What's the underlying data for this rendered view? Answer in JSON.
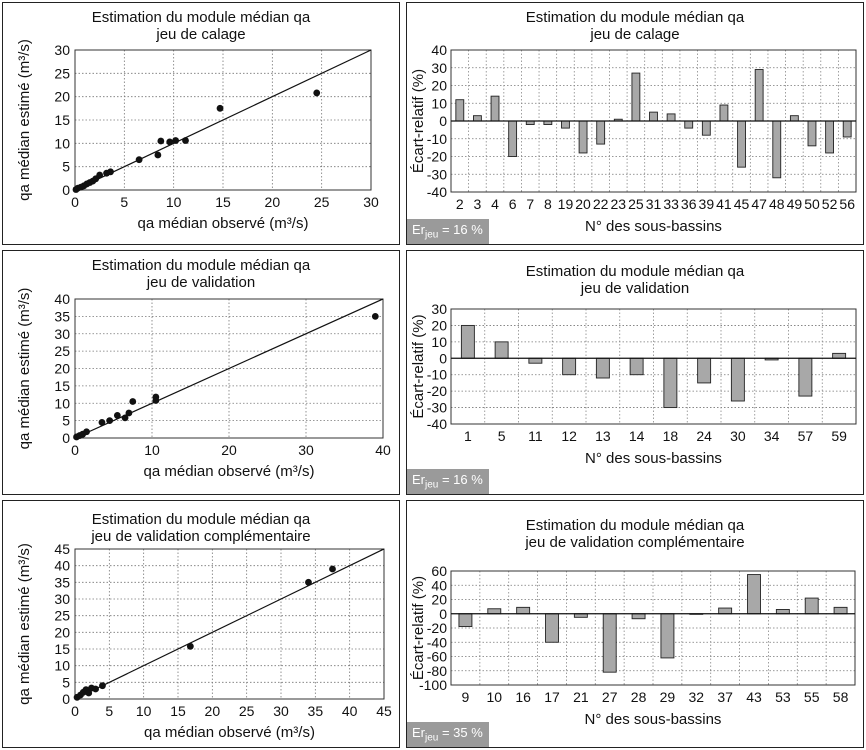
{
  "chart_data": [
    {
      "type": "scatter",
      "title": "Estimation du module médian qa",
      "subtitle": "jeu de calage",
      "xlabel": "qa médian observé (m³/s)",
      "ylabel": "qa médian estimé (m³/s)",
      "xlim": [
        0,
        30
      ],
      "ylim": [
        0,
        30
      ],
      "xticks": [
        0,
        5,
        10,
        15,
        20,
        25,
        30
      ],
      "yticks": [
        0,
        5,
        10,
        15,
        20,
        25,
        30
      ],
      "reference_line": "1:1",
      "grid": true,
      "points": [
        [
          0.1,
          0.1
        ],
        [
          0.3,
          0.4
        ],
        [
          0.6,
          0.6
        ],
        [
          0.9,
          0.9
        ],
        [
          1.2,
          1.3
        ],
        [
          1.5,
          1.6
        ],
        [
          1.8,
          1.9
        ],
        [
          2.1,
          2.4
        ],
        [
          2.5,
          3.2
        ],
        [
          3.2,
          3.6
        ],
        [
          3.6,
          3.9
        ],
        [
          6.5,
          6.5
        ],
        [
          8.4,
          7.5
        ],
        [
          8.7,
          10.5
        ],
        [
          9.6,
          10.3
        ],
        [
          10.2,
          10.6
        ],
        [
          11.2,
          10.6
        ],
        [
          14.7,
          17.5
        ],
        [
          24.5,
          20.8
        ]
      ]
    },
    {
      "type": "bar",
      "title": "Estimation du module médian qa",
      "subtitle": "jeu de calage",
      "xlabel": "N° des sous-bassins",
      "ylabel": "Écart-relatif (%)",
      "ylim": [
        -40,
        40
      ],
      "yticks": [
        -40,
        -30,
        -20,
        -10,
        0,
        10,
        20,
        30,
        40
      ],
      "grid": true,
      "categories": [
        "2",
        "3",
        "4",
        "6",
        "7",
        "8",
        "19",
        "20",
        "22",
        "23",
        "25",
        "31",
        "33",
        "36",
        "39",
        "41",
        "45",
        "47",
        "48",
        "49",
        "50",
        "52",
        "56"
      ],
      "values": [
        12,
        3,
        14,
        -20,
        -2,
        -2,
        -4,
        -18,
        -13,
        1,
        27,
        5,
        4,
        -4,
        -8,
        9,
        -26,
        29,
        -32,
        3,
        -14,
        -18,
        -9
      ],
      "badge": {
        "label": "Er",
        "sub": "jeu",
        "value": " = 16 %"
      }
    },
    {
      "type": "scatter",
      "title": "Estimation du module médian qa",
      "subtitle": "jeu de validation",
      "xlabel": "qa médian observé (m³/s)",
      "ylabel": "qa médian estimé (m³/s)",
      "xlim": [
        0,
        40
      ],
      "ylim": [
        0,
        40
      ],
      "xticks": [
        0,
        10,
        20,
        30,
        40
      ],
      "yticks": [
        0,
        5,
        10,
        15,
        20,
        25,
        30,
        35,
        40
      ],
      "reference_line": "1:1",
      "grid": true,
      "points": [
        [
          0.2,
          0.3
        ],
        [
          0.6,
          0.7
        ],
        [
          1.0,
          1.1
        ],
        [
          1.5,
          1.8
        ],
        [
          3.5,
          4.5
        ],
        [
          4.5,
          5.0
        ],
        [
          5.5,
          6.5
        ],
        [
          6.5,
          5.8
        ],
        [
          7.0,
          7.2
        ],
        [
          7.5,
          10.5
        ],
        [
          10.5,
          10.8
        ],
        [
          10.5,
          11.8
        ],
        [
          39.0,
          35.0
        ]
      ]
    },
    {
      "type": "bar",
      "title": "Estimation du module médian qa",
      "subtitle": "jeu de validation",
      "xlabel": "N° des sous-bassins",
      "ylabel": "Écart-relatif (%)",
      "ylim": [
        -40,
        30
      ],
      "yticks": [
        -40,
        -30,
        -20,
        -10,
        0,
        10,
        20,
        30
      ],
      "grid": true,
      "categories": [
        "1",
        "5",
        "11",
        "12",
        "13",
        "14",
        "18",
        "24",
        "30",
        "34",
        "57",
        "59"
      ],
      "values": [
        20,
        10,
        -3,
        -10,
        -12,
        -10,
        -30,
        -15,
        -26,
        -1,
        -23,
        3
      ],
      "badge": {
        "label": "Er",
        "sub": "jeu",
        "value": " = 16 %"
      }
    },
    {
      "type": "scatter",
      "title": "Estimation du module médian qa",
      "subtitle": "jeu de validation complémentaire",
      "xlabel": "qa médian observé (m³/s)",
      "ylabel": "qa médian estimé (m³/s)",
      "xlim": [
        0,
        45
      ],
      "ylim": [
        0,
        45
      ],
      "xticks": [
        0,
        5,
        10,
        15,
        20,
        25,
        30,
        35,
        40,
        45
      ],
      "yticks": [
        0,
        5,
        10,
        15,
        20,
        25,
        30,
        35,
        40,
        45
      ],
      "reference_line": "1:1",
      "grid": true,
      "points": [
        [
          0.3,
          0.5
        ],
        [
          0.8,
          1.2
        ],
        [
          1.2,
          2.0
        ],
        [
          1.6,
          2.8
        ],
        [
          2.0,
          1.8
        ],
        [
          2.4,
          3.3
        ],
        [
          3.0,
          3.0
        ],
        [
          4.0,
          4.0
        ],
        [
          16.8,
          15.8
        ],
        [
          34.0,
          35.0
        ],
        [
          37.5,
          39.0
        ]
      ]
    },
    {
      "type": "bar",
      "title": "Estimation du module médian qa",
      "subtitle": "jeu de validation complémentaire",
      "xlabel": "N° des sous-bassins",
      "ylabel": "Écart-relatif (%)",
      "ylim": [
        -100,
        60
      ],
      "yticks": [
        -100,
        -80,
        -60,
        -40,
        -20,
        0,
        20,
        40,
        60
      ],
      "grid": true,
      "categories": [
        "9",
        "10",
        "16",
        "17",
        "21",
        "27",
        "28",
        "29",
        "32",
        "37",
        "43",
        "53",
        "55",
        "58"
      ],
      "values": [
        -18,
        7,
        9,
        -40,
        -5,
        -82,
        -7,
        -62,
        0,
        8,
        55,
        6,
        22,
        9
      ],
      "badge": {
        "label": "Er",
        "sub": "jeu",
        "value": " = 35 %"
      }
    }
  ]
}
